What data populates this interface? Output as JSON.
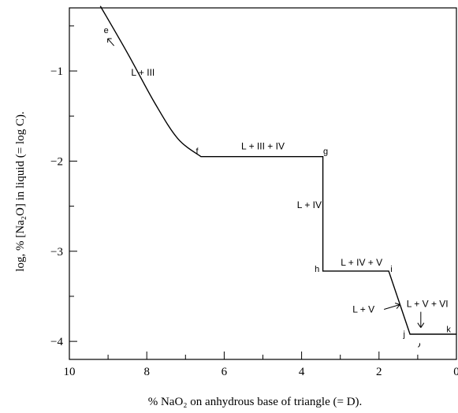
{
  "chart_data": {
    "type": "line",
    "xlabel": "% NaO₂ on anhydrous base of triangle (= D).",
    "ylabel": "log, % [Na₂O] in liquid (= log C).",
    "xlim": [
      10,
      0
    ],
    "ylim": [
      -4.2,
      -0.3
    ],
    "x_ticks": [
      "10",
      "8",
      "6",
      "4",
      "2",
      "0"
    ],
    "y_ticks": [
      "−1",
      "−2",
      "−3",
      "−4"
    ],
    "grid": false,
    "series": [
      {
        "x": [
          9.2,
          8.5,
          7.8,
          7.2,
          6.6,
          3.45,
          3.45,
          1.75,
          1.2,
          0
        ],
        "y": [
          -0.28,
          -0.8,
          -1.35,
          -1.75,
          -1.95,
          -1.95,
          -3.22,
          -3.22,
          -3.92,
          -3.92
        ]
      }
    ],
    "point_labels": [
      {
        "text": "e",
        "x": 9.05,
        "y": -0.58
      },
      {
        "text": "f",
        "x": 6.7,
        "y": -1.92
      },
      {
        "text": "g",
        "x": 3.38,
        "y": -1.92
      },
      {
        "text": "h",
        "x": 3.6,
        "y": -3.23
      },
      {
        "text": "i",
        "x": 1.68,
        "y": -3.23
      },
      {
        "text": "j",
        "x": 1.35,
        "y": -3.95
      },
      {
        "text": "k",
        "x": 0.2,
        "y": -3.9
      }
    ],
    "region_labels": [
      {
        "text": "L + III",
        "x": 8.1,
        "y": -1.05
      },
      {
        "text": "L + III + IV",
        "x": 5.0,
        "y": -1.87
      },
      {
        "text": "L + IV",
        "x": 3.8,
        "y": -2.52
      },
      {
        "text": "L + IV + V",
        "x": 2.45,
        "y": -3.16
      },
      {
        "text": "L + V",
        "x": 2.4,
        "y": -3.68,
        "arrow": true
      },
      {
        "text": "L + V + VI",
        "x": 0.75,
        "y": -3.62,
        "arrow": true
      }
    ]
  }
}
